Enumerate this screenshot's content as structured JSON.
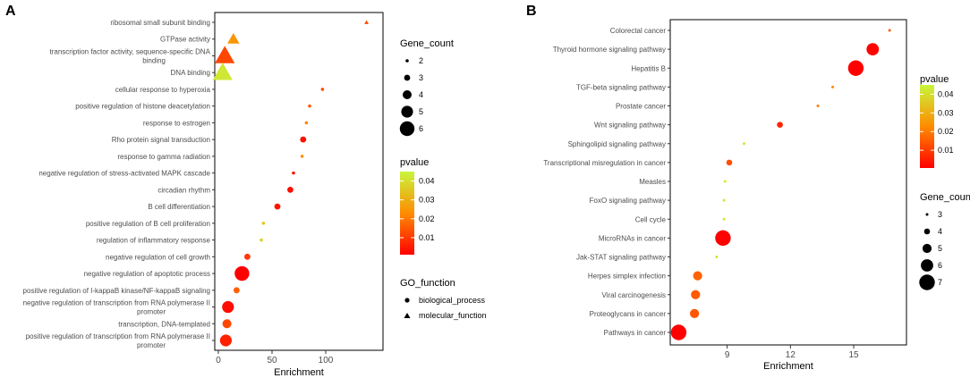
{
  "chart_data": [
    {
      "panel": "A",
      "type": "scatter",
      "xlabel": "Enrichment",
      "xlim": [
        0,
        145
      ],
      "xticks": [
        0,
        50,
        100
      ],
      "categories": [
        "ribosomal small subunit binding",
        "GTPase activity",
        "transcription factor activity, sequence-specific DNA binding",
        "DNA binding",
        "cellular response to hyperoxia",
        "positive regulation of histone deacetylation",
        "response to estrogen",
        "Rho protein signal transduction",
        "response to gamma radiation",
        "negative regulation of stress-activated MAPK cascade",
        "circadian rhythm",
        "B cell differentiation",
        "positive regulation of B cell proliferation",
        "regulation of inflammatory response",
        "negative regulation of cell growth",
        "negative regulation of apoptotic process",
        "positive regulation of I-kappaB kinase/NF-kappaB signaling",
        "negative regulation of transcription from RNA polymerase II promoter",
        "transcription, DNA-templated",
        "positive regulation of transcription from RNA polymerase II promoter"
      ],
      "points": [
        {
          "x": 138,
          "gene_count": 2,
          "pvalue": 0.012,
          "function": "molecular_function"
        },
        {
          "x": 14,
          "gene_count": 4,
          "pvalue": 0.025,
          "function": "molecular_function"
        },
        {
          "x": 6,
          "gene_count": 6,
          "pvalue": 0.012,
          "function": "molecular_function"
        },
        {
          "x": 4,
          "gene_count": 6,
          "pvalue": 0.042,
          "function": "molecular_function"
        },
        {
          "x": 97,
          "gene_count": 2,
          "pvalue": 0.013,
          "function": "biological_process"
        },
        {
          "x": 85,
          "gene_count": 2,
          "pvalue": 0.015,
          "function": "biological_process"
        },
        {
          "x": 82,
          "gene_count": 2,
          "pvalue": 0.022,
          "function": "biological_process"
        },
        {
          "x": 79,
          "gene_count": 3,
          "pvalue": 0.003,
          "function": "biological_process"
        },
        {
          "x": 78,
          "gene_count": 2,
          "pvalue": 0.024,
          "function": "biological_process"
        },
        {
          "x": 70,
          "gene_count": 2,
          "pvalue": 0.004,
          "function": "biological_process"
        },
        {
          "x": 67,
          "gene_count": 3,
          "pvalue": 0.003,
          "function": "biological_process"
        },
        {
          "x": 55,
          "gene_count": 3,
          "pvalue": 0.004,
          "function": "biological_process"
        },
        {
          "x": 42,
          "gene_count": 2,
          "pvalue": 0.036,
          "function": "biological_process"
        },
        {
          "x": 40,
          "gene_count": 2,
          "pvalue": 0.038,
          "function": "biological_process"
        },
        {
          "x": 27,
          "gene_count": 3,
          "pvalue": 0.01,
          "function": "biological_process"
        },
        {
          "x": 22,
          "gene_count": 6,
          "pvalue": 0.001,
          "function": "biological_process"
        },
        {
          "x": 17,
          "gene_count": 3,
          "pvalue": 0.016,
          "function": "biological_process"
        },
        {
          "x": 9,
          "gene_count": 5,
          "pvalue": 0.003,
          "function": "biological_process"
        },
        {
          "x": 8,
          "gene_count": 4,
          "pvalue": 0.012,
          "function": "biological_process"
        },
        {
          "x": 7,
          "gene_count": 5,
          "pvalue": 0.006,
          "function": "biological_process"
        }
      ],
      "legend_gene_count": {
        "title": "Gene_count",
        "values": [
          2,
          3,
          4,
          5,
          6
        ]
      },
      "legend_pvalue": {
        "title": "pvalue",
        "ticks": [
          0.04,
          0.03,
          0.02,
          0.01
        ],
        "range": [
          0.001,
          0.045
        ]
      },
      "legend_function": {
        "title": "GO_function",
        "items": [
          "biological_process",
          "molecular_function"
        ]
      }
    },
    {
      "panel": "B",
      "type": "scatter",
      "xlabel": "Enrichment",
      "xlim": [
        6.3,
        17.5
      ],
      "xticks": [
        9,
        12,
        15
      ],
      "categories": [
        "Colorectal cancer",
        "Thyroid hormone signaling pathway",
        "Hepatitis B",
        "TGF-beta signaling pathway",
        "Prostate cancer",
        "Wnt signaling pathway",
        "Sphingolipid signaling pathway",
        "Transcriptional misregulation in cancer",
        "Measles",
        "FoxO signaling pathway",
        "Cell cycle",
        "MicroRNAs in cancer",
        "Jak-STAT signaling pathway",
        "Herpes simplex infection",
        "Viral carcinogenesis",
        "Proteoglycans in cancer",
        "Pathways in cancer"
      ],
      "points": [
        {
          "x": 16.7,
          "gene_count": 3,
          "pvalue": 0.015
        },
        {
          "x": 15.9,
          "gene_count": 6,
          "pvalue": 0.001
        },
        {
          "x": 15.1,
          "gene_count": 7,
          "pvalue": 0.0005
        },
        {
          "x": 14.0,
          "gene_count": 3,
          "pvalue": 0.022
        },
        {
          "x": 13.3,
          "gene_count": 3,
          "pvalue": 0.02
        },
        {
          "x": 11.5,
          "gene_count": 4,
          "pvalue": 0.006
        },
        {
          "x": 9.8,
          "gene_count": 3,
          "pvalue": 0.042
        },
        {
          "x": 9.1,
          "gene_count": 4,
          "pvalue": 0.013
        },
        {
          "x": 8.9,
          "gene_count": 3,
          "pvalue": 0.044
        },
        {
          "x": 8.85,
          "gene_count": 3,
          "pvalue": 0.042
        },
        {
          "x": 8.85,
          "gene_count": 3,
          "pvalue": 0.043
        },
        {
          "x": 8.8,
          "gene_count": 7,
          "pvalue": 0.0007
        },
        {
          "x": 8.5,
          "gene_count": 3,
          "pvalue": 0.041
        },
        {
          "x": 7.6,
          "gene_count": 5,
          "pvalue": 0.016
        },
        {
          "x": 7.5,
          "gene_count": 5,
          "pvalue": 0.015
        },
        {
          "x": 7.45,
          "gene_count": 5,
          "pvalue": 0.014
        },
        {
          "x": 6.7,
          "gene_count": 7,
          "pvalue": 0.0005
        }
      ],
      "legend_pvalue": {
        "title": "pvalue",
        "ticks": [
          0.04,
          0.03,
          0.02,
          0.01
        ],
        "range": [
          0.0005,
          0.045
        ]
      },
      "legend_gene_count": {
        "title": "Gene_count",
        "values": [
          3,
          4,
          5,
          6,
          7
        ]
      }
    }
  ]
}
